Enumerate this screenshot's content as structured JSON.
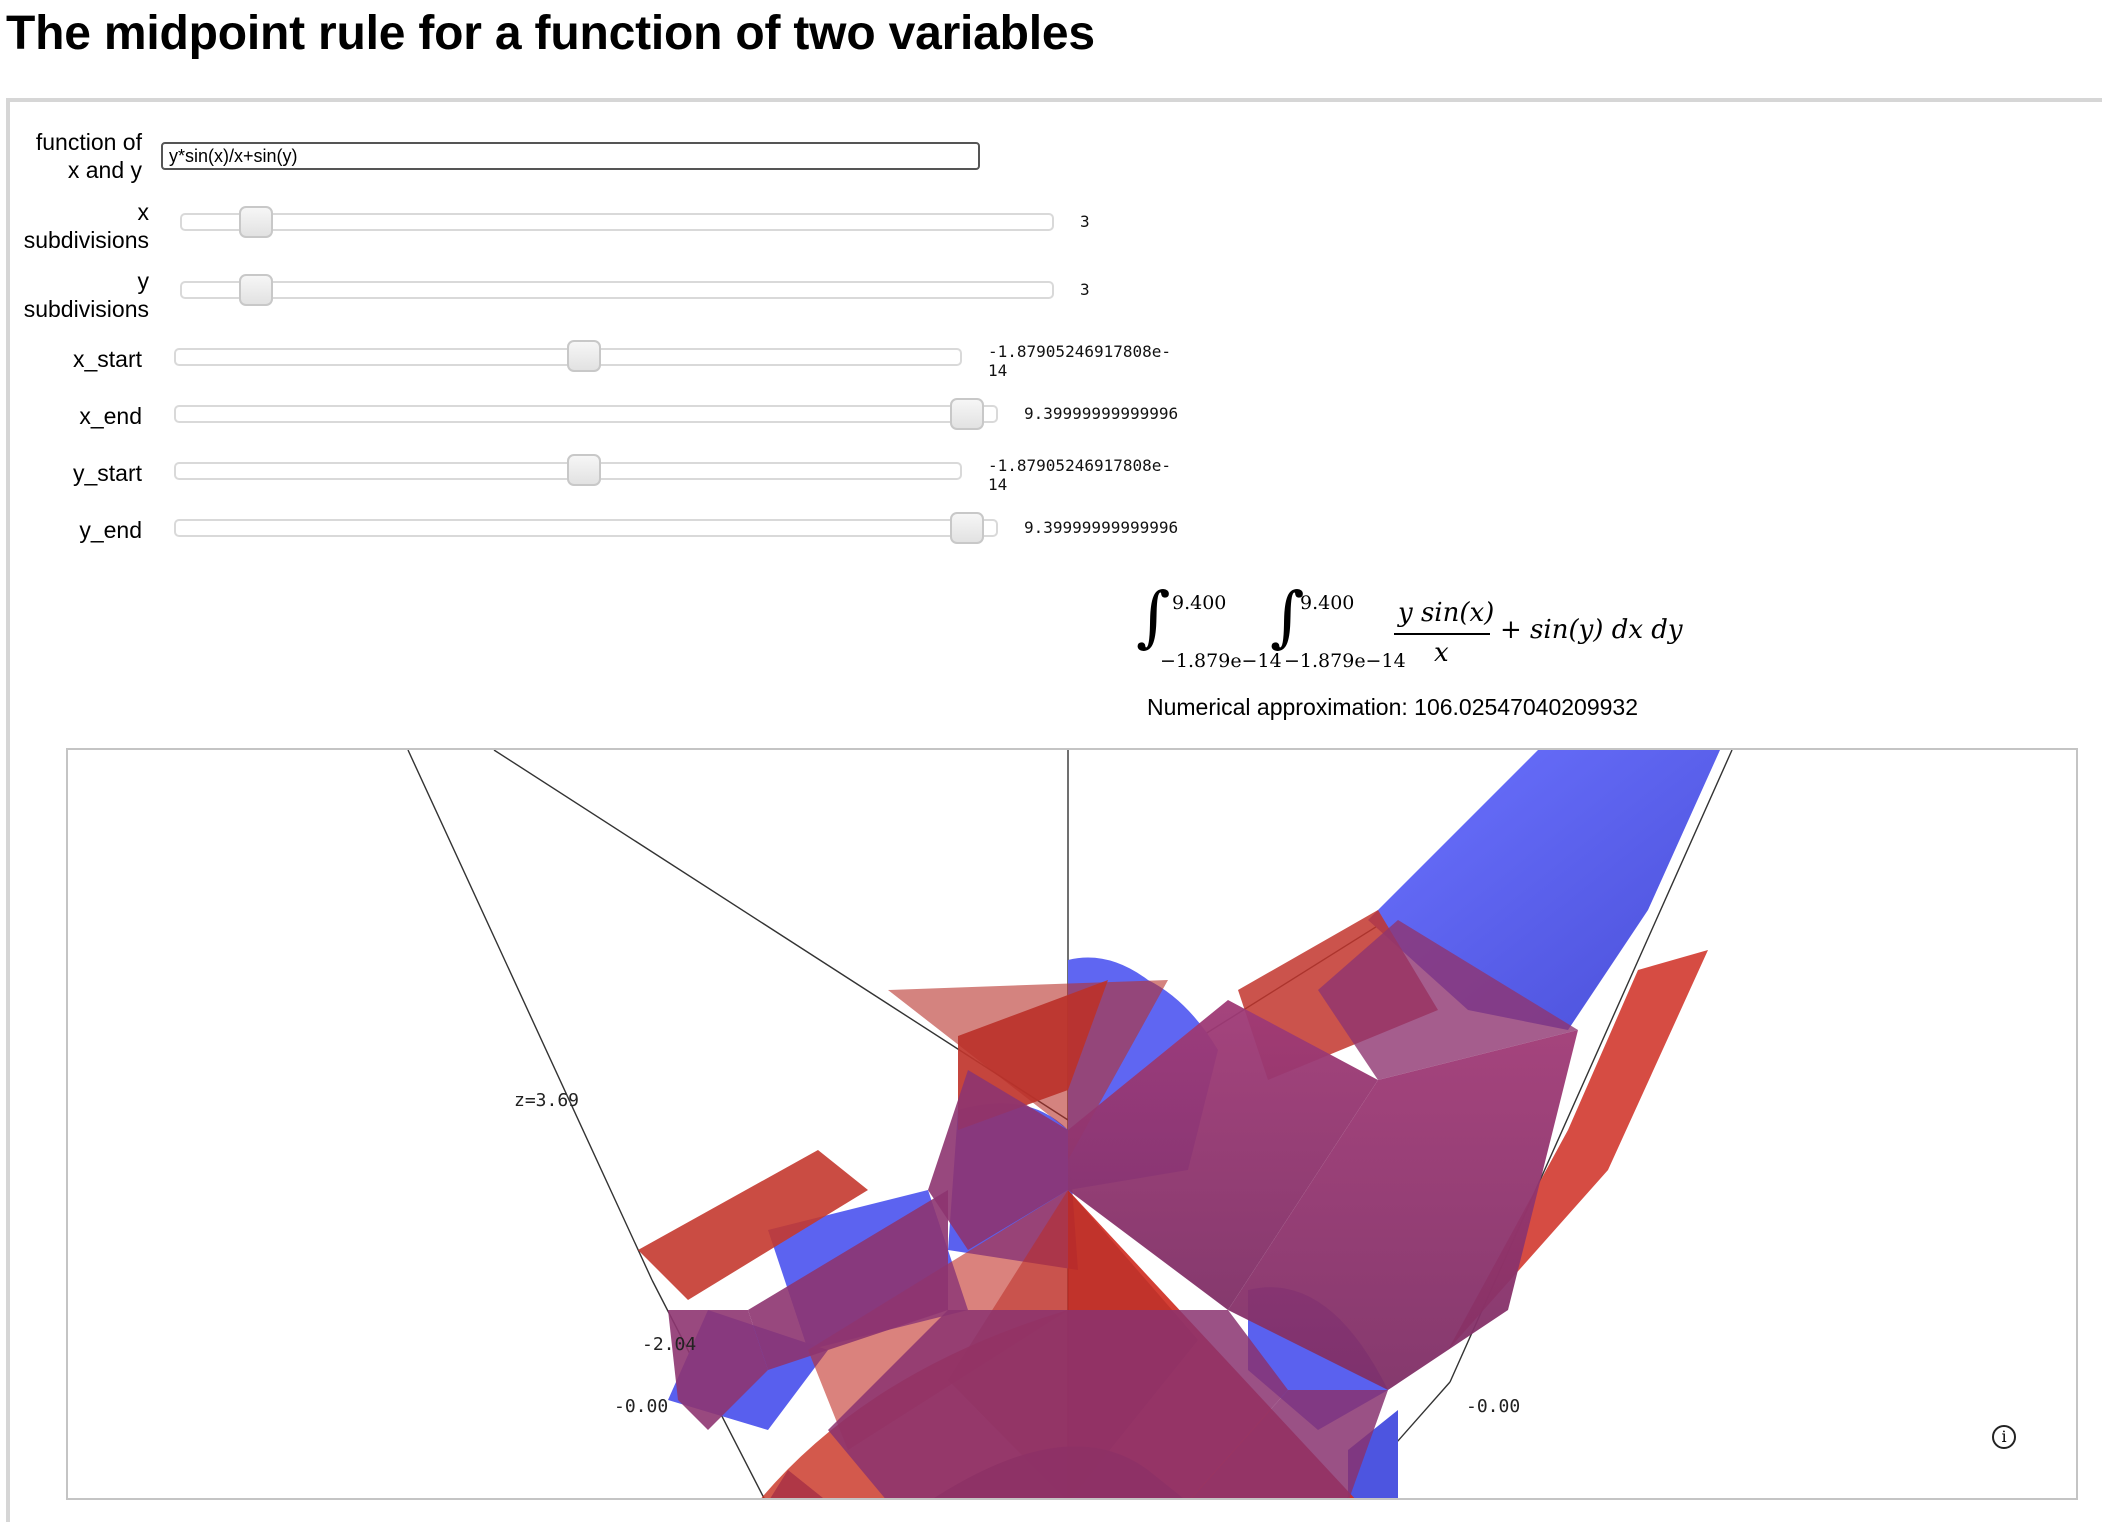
{
  "title": "The midpoint rule for a function of two variables",
  "controls": {
    "function_label_1": "function of",
    "function_label_2": "x and y",
    "function_value": "y*sin(x)/x+sin(y)",
    "x_subdiv_label_1": "x",
    "x_subdiv_label_2": "subdivisions",
    "x_subdiv_value": "3",
    "y_subdiv_label_1": "y",
    "y_subdiv_label_2": "subdivisions",
    "y_subdiv_value": "3",
    "x_start_label": "x_start",
    "x_start_value": "-1.87905246917808e-\n14",
    "x_end_label": "x_end",
    "x_end_value": "9.39999999999996",
    "y_start_label": "y_start",
    "y_start_value": "-1.87905246917808e-\n14",
    "y_end_label": "y_end",
    "y_end_value": "9.39999999999996"
  },
  "sliders": {
    "x_subdivisions_level": 0.03,
    "y_subdivisions_level": 0.03,
    "x_start_level": 0.5,
    "x_end_level": 1.0,
    "y_start_level": 0.5,
    "y_end_level": 1.0
  },
  "formula": {
    "outer_upper": "9.400",
    "outer_lower": "−1.879e−14",
    "inner_upper": "9.400",
    "inner_lower": "−1.879e−14",
    "numerator": "y sin(x)",
    "denominator": "x",
    "rest": "+ sin(y) dx dy"
  },
  "approximation": "Numerical approximation: 106.02547040209932",
  "plot": {
    "z_label": "z=3.69",
    "tick_mid": "-2.04",
    "tick_left": "-0.00",
    "tick_right": "-0.00",
    "info_symbol": "i",
    "colors": {
      "surface": "#5a62f5",
      "boxes": "#c8201a",
      "overlap": "#8d3470"
    }
  }
}
